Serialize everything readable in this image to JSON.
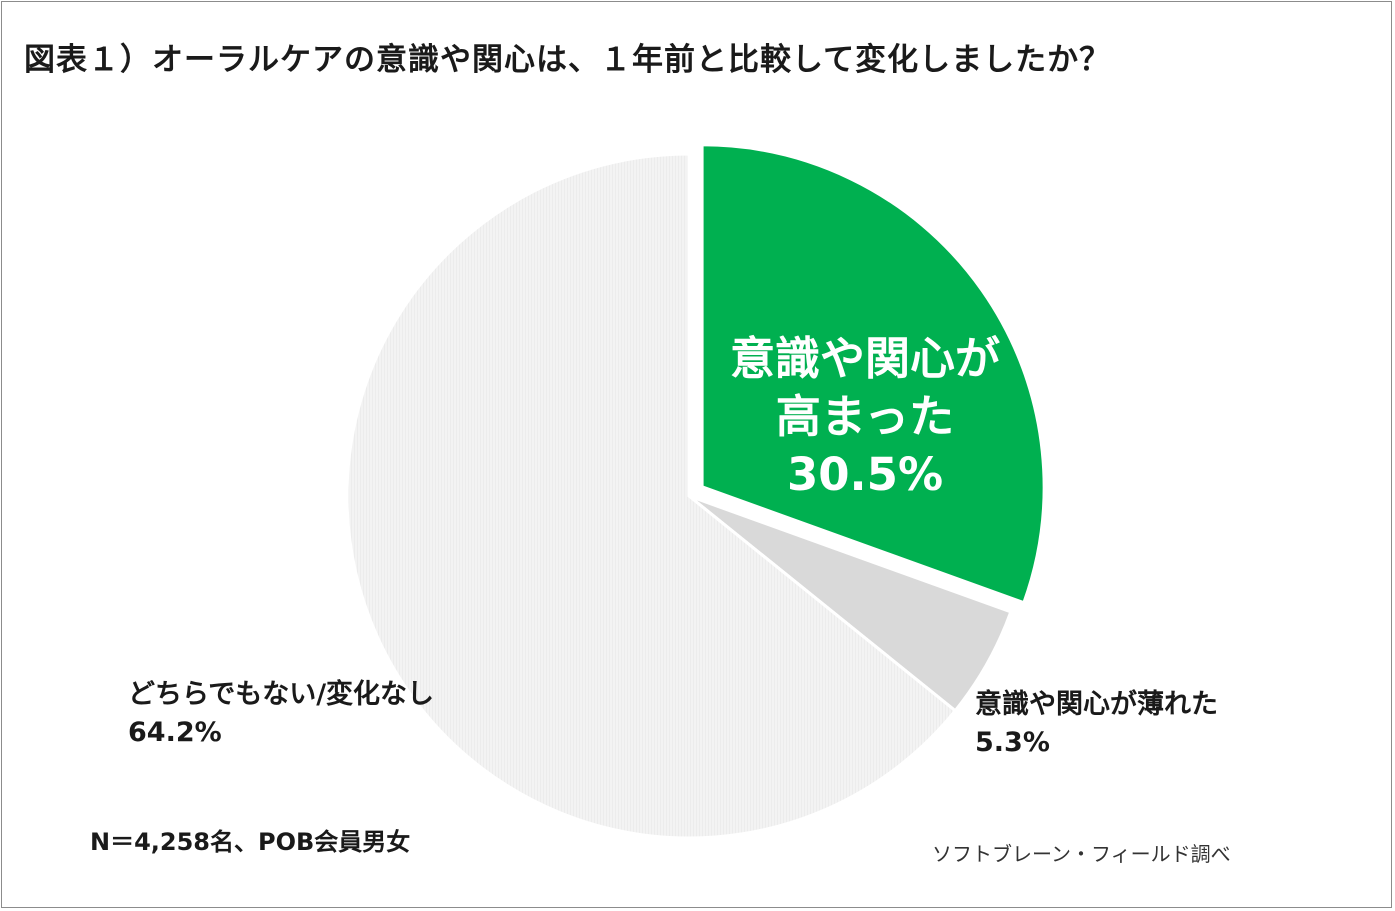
{
  "chart_data": {
    "type": "pie",
    "title": "図表１）オーラルケアの意識や関心は、１年前と比較して変化しましたか？",
    "slices": [
      {
        "label_line1": "意識や関心が",
        "label_line2": "高まった",
        "value": 30.5,
        "value_text": "30.5%",
        "color": "#00b050",
        "exploded": true
      },
      {
        "label": "意識や関心が薄れた",
        "value": 5.3,
        "value_text": "5.3%",
        "color": "#d9d9d9",
        "exploded": false
      },
      {
        "label": "どちらでもない/変化なし",
        "value": 64.2,
        "value_text": "64.2%",
        "color": "#f2f2f2",
        "exploded": false
      }
    ],
    "start_angle": "12 o'clock",
    "direction": "clockwise"
  },
  "note": "N＝4,258名、POB会員男女",
  "source": "ソフトブレーン・フィールド調べ"
}
